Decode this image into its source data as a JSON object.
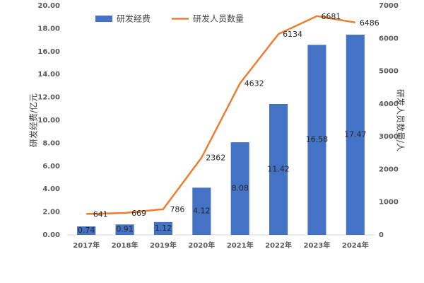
{
  "chart_data": {
    "type": "bar",
    "categories": [
      "2017年",
      "2018年",
      "2019年",
      "2020年",
      "2021年",
      "2022年",
      "2023年",
      "2024年"
    ],
    "series": [
      {
        "name": "研发经费",
        "type": "bar",
        "color": "#4472c4",
        "values": [
          0.74,
          0.91,
          1.12,
          4.12,
          8.08,
          11.42,
          16.58,
          17.47
        ]
      },
      {
        "name": "研发人员数量",
        "type": "line",
        "axis": "y2",
        "color": "#ed7d31",
        "values": [
          641,
          669,
          786,
          2362,
          4632,
          6134,
          6681,
          6486
        ]
      }
    ],
    "ylabel": "研发经费/亿元",
    "y2label": "研发人员数量/人",
    "ylim": [
      0,
      20
    ],
    "yticks": [
      {
        "value": 0,
        "label": "0.00"
      },
      {
        "value": 2,
        "label": "2.00"
      },
      {
        "value": 4,
        "label": "4.00"
      },
      {
        "value": 6,
        "label": "6.00"
      },
      {
        "value": 8,
        "label": "8.00"
      },
      {
        "value": 10,
        "label": "10.00"
      },
      {
        "value": 12,
        "label": "12.00"
      },
      {
        "value": 14,
        "label": "14.00"
      },
      {
        "value": 16,
        "label": "16.00"
      },
      {
        "value": 18,
        "label": "18.00"
      },
      {
        "value": 20,
        "label": "20.00"
      }
    ],
    "y2lim": [
      0,
      7000
    ],
    "y2ticks": [
      0,
      1000,
      2000,
      3000,
      4000,
      5000,
      6000,
      7000
    ],
    "grid": false,
    "legend": "top"
  }
}
